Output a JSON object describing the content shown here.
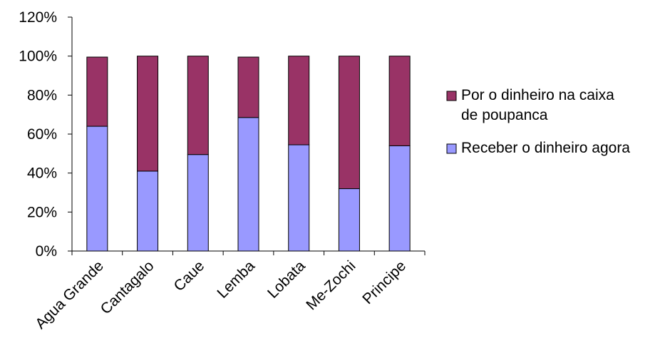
{
  "chart_data": {
    "type": "bar",
    "stacked": true,
    "categories": [
      "Agua Grande",
      "Cantagalo",
      "Caue",
      "Lemba",
      "Lobata",
      "Me-Zochi",
      "Principe"
    ],
    "series": [
      {
        "name": "Receber o dinheiro agora",
        "values": [
          64,
          41,
          49.5,
          68.5,
          54.5,
          32,
          54
        ],
        "color": "#9999ff"
      },
      {
        "name": "Por o dinheiro na caixa de poupanca",
        "values": [
          35.5,
          59,
          50.5,
          31,
          45.5,
          68,
          46
        ],
        "color": "#993366"
      }
    ],
    "ylim": [
      0,
      120
    ],
    "yticks": [
      "0%",
      "20%",
      "40%",
      "60%",
      "80%",
      "100%",
      "120%"
    ],
    "grid": false,
    "legend": {
      "position": "right",
      "entries": [
        [
          "Por o dinheiro na caixa",
          "de poupanca"
        ],
        [
          "Receber o dinheiro agora"
        ]
      ]
    }
  }
}
